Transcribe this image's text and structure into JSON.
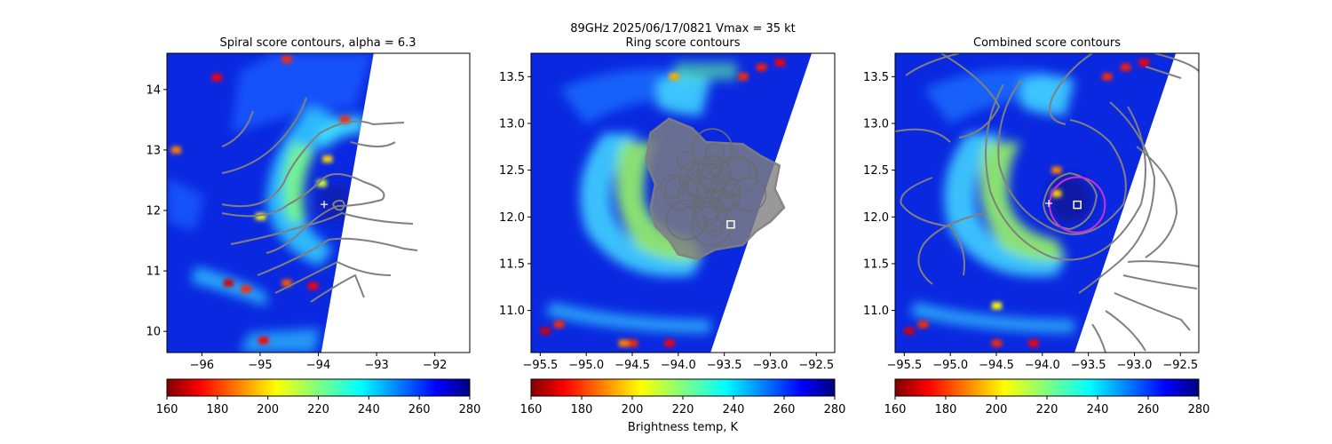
{
  "figure": {
    "suptitle_line1": "89GHz  2025/06/17/0821    Vmax = 35 kt",
    "colorbar_label": "Brightness temp, K"
  },
  "colors": {
    "contour": "#808080",
    "fit_circle": "#cc33cc",
    "center_marker": "#ffffff"
  },
  "chart_data": [
    {
      "type": "heatmap",
      "title": "Spiral score contours, alpha =  6.3",
      "xlim": [
        -96.6,
        -91.4
      ],
      "ylim": [
        9.65,
        14.6
      ],
      "x_ticks": [
        -96,
        -95,
        -94,
        -93,
        -92
      ],
      "y_ticks": [
        10,
        11,
        12,
        13,
        14
      ],
      "swath_edge": [
        [
          -93.05,
          14.6
        ],
        [
          -93.95,
          9.65
        ]
      ],
      "storm_center": [
        -93.9,
        12.1
      ],
      "colorbar": {
        "vmin": 160,
        "vmax": 280,
        "ticks": [
          160,
          180,
          200,
          220,
          240,
          260,
          280
        ],
        "cmap": "jet_r"
      },
      "warm_spots": [
        [
          -96.45,
          13.0,
          190
        ],
        [
          -95.75,
          14.2,
          175
        ],
        [
          -94.55,
          14.5,
          180
        ],
        [
          -95.55,
          10.8,
          170
        ],
        [
          -94.55,
          10.8,
          185
        ],
        [
          -94.1,
          10.75,
          175
        ],
        [
          -95.25,
          10.7,
          180
        ],
        [
          -94.95,
          9.85,
          175
        ],
        [
          -93.55,
          13.5,
          180
        ],
        [
          -93.85,
          12.85,
          200
        ],
        [
          -95.0,
          11.9,
          205
        ],
        [
          -93.95,
          12.45,
          210
        ]
      ]
    },
    {
      "type": "heatmap",
      "title": "Ring score contours",
      "xlim": [
        -95.6,
        -92.3
      ],
      "ylim": [
        10.55,
        13.75
      ],
      "x_ticks": [
        -95.5,
        -95.0,
        -94.5,
        -94.0,
        -93.5,
        -93.0,
        -92.5
      ],
      "y_ticks": [
        11.0,
        11.5,
        12.0,
        12.5,
        13.0,
        13.5
      ],
      "swath_edge": [
        [
          -92.55,
          13.75
        ],
        [
          -93.65,
          10.55
        ]
      ],
      "best_ring_center": [
        -93.43,
        11.92
      ],
      "colorbar": {
        "vmin": 160,
        "vmax": 280,
        "ticks": [
          160,
          180,
          200,
          220,
          240,
          260,
          280
        ],
        "cmap": "jet_r"
      },
      "warm_spots": [
        [
          -95.45,
          10.78,
          170
        ],
        [
          -94.5,
          10.65,
          180
        ],
        [
          -94.1,
          10.65,
          175
        ],
        [
          -94.6,
          10.65,
          190
        ],
        [
          -93.3,
          13.5,
          180
        ],
        [
          -93.1,
          13.6,
          178
        ],
        [
          -92.9,
          13.65,
          175
        ],
        [
          -94.05,
          13.5,
          195
        ],
        [
          -95.3,
          10.85,
          180
        ]
      ]
    },
    {
      "type": "heatmap",
      "title": "Combined score contours",
      "xlim": [
        -95.6,
        -92.3
      ],
      "ylim": [
        10.55,
        13.75
      ],
      "x_ticks": [
        -95.5,
        -95.0,
        -94.5,
        -94.0,
        -93.5,
        -93.0,
        -92.5
      ],
      "y_ticks": [
        11.0,
        11.5,
        12.0,
        12.5,
        13.0,
        13.5
      ],
      "swath_edge": [
        [
          -92.55,
          13.75
        ],
        [
          -93.65,
          10.55
        ]
      ],
      "combined_center": [
        -93.62,
        12.13
      ],
      "fit_circle": {
        "center": [
          -93.62,
          12.13
        ],
        "radius_deg": 0.3
      },
      "colorbar": {
        "vmin": 160,
        "vmax": 280,
        "ticks": [
          160,
          180,
          200,
          220,
          240,
          260,
          280
        ],
        "cmap": "jet_r"
      },
      "warm_spots": [
        [
          -95.45,
          10.78,
          170
        ],
        [
          -94.5,
          10.65,
          180
        ],
        [
          -94.1,
          10.65,
          175
        ],
        [
          -93.3,
          13.5,
          180
        ],
        [
          -93.1,
          13.6,
          178
        ],
        [
          -92.9,
          13.65,
          175
        ],
        [
          -93.85,
          12.5,
          190
        ],
        [
          -93.85,
          12.25,
          200
        ],
        [
          -94.5,
          11.05,
          205
        ],
        [
          -95.3,
          10.85,
          180
        ]
      ]
    }
  ]
}
